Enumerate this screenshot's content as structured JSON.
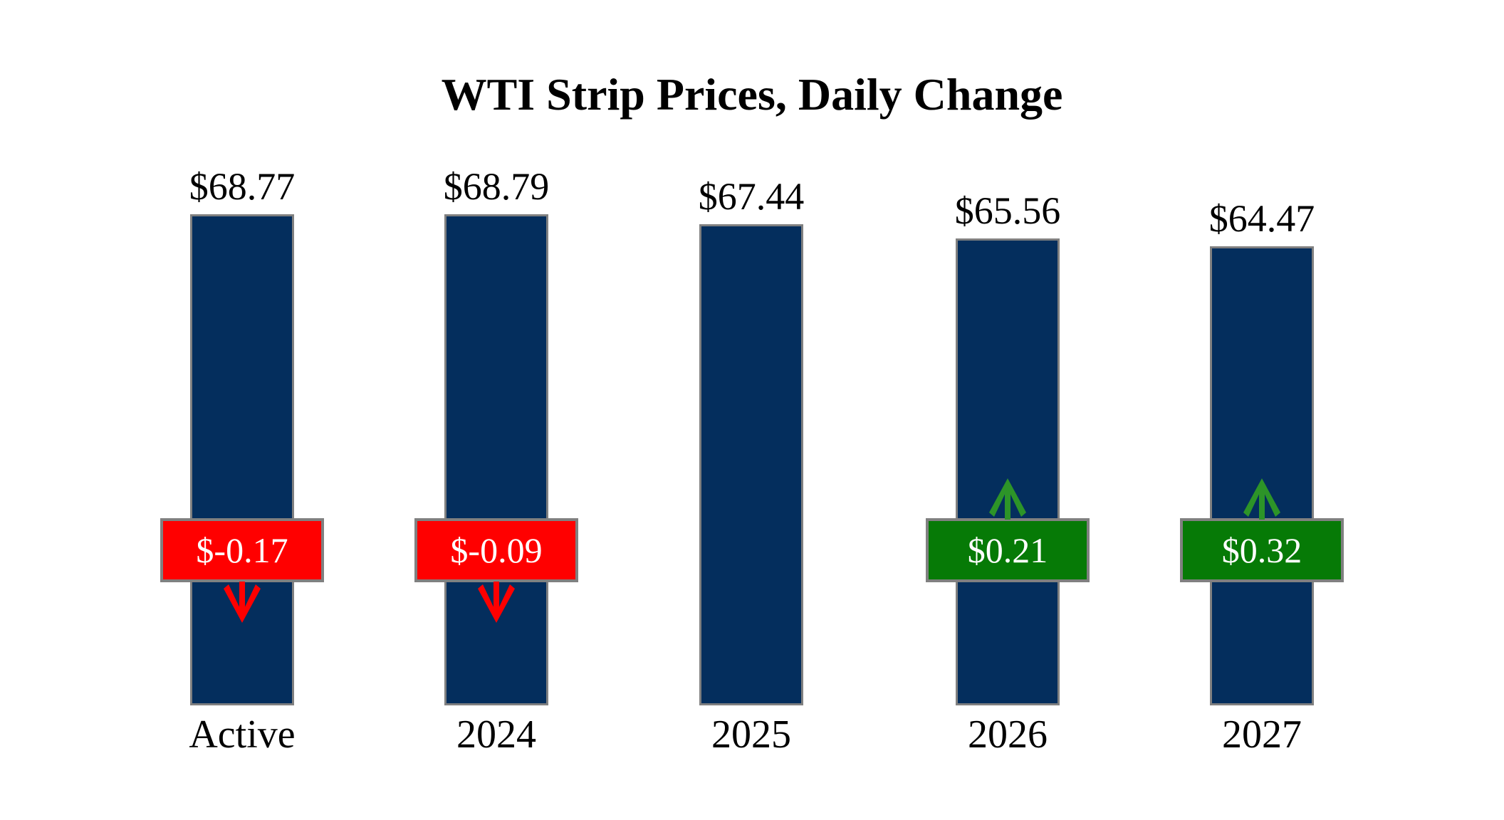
{
  "title": "WTI Strip Prices, Daily Change",
  "colors": {
    "bar": "#042E5D",
    "border": "#808080",
    "negative": "#FF0000",
    "positive": "#067A06",
    "positive_arrow": "#2D9428",
    "box_text": "#FFFFFF",
    "text": "#000000"
  },
  "chart_data": {
    "type": "bar",
    "title": "WTI Strip Prices, Daily Change",
    "xlabel": "",
    "ylabel": "",
    "legend": "none",
    "grid": "off",
    "categories": [
      "Active",
      "2024",
      "2025",
      "2026",
      "2027"
    ],
    "series": [
      {
        "name": "strip_price_usd",
        "values": [
          68.77,
          68.79,
          67.44,
          65.56,
          64.47
        ]
      },
      {
        "name": "daily_change_usd",
        "values": [
          -0.17,
          -0.09,
          null,
          0.21,
          0.32
        ]
      }
    ],
    "bars": [
      {
        "category": "Active",
        "price": 68.77,
        "price_label": "$68.77",
        "change": -0.17,
        "change_label": "$-0.17",
        "direction": "down"
      },
      {
        "category": "2024",
        "price": 68.79,
        "price_label": "$68.79",
        "change": -0.09,
        "change_label": "$-0.09",
        "direction": "down"
      },
      {
        "category": "2025",
        "price": 67.44,
        "price_label": "$67.44",
        "change": null,
        "change_label": "",
        "direction": "none"
      },
      {
        "category": "2026",
        "price": 65.56,
        "price_label": "$65.56",
        "change": 0.21,
        "change_label": "$0.21",
        "direction": "up"
      },
      {
        "category": "2027",
        "price": 64.47,
        "price_label": "$64.47",
        "change": 0.32,
        "change_label": "$0.32",
        "direction": "up"
      }
    ]
  }
}
